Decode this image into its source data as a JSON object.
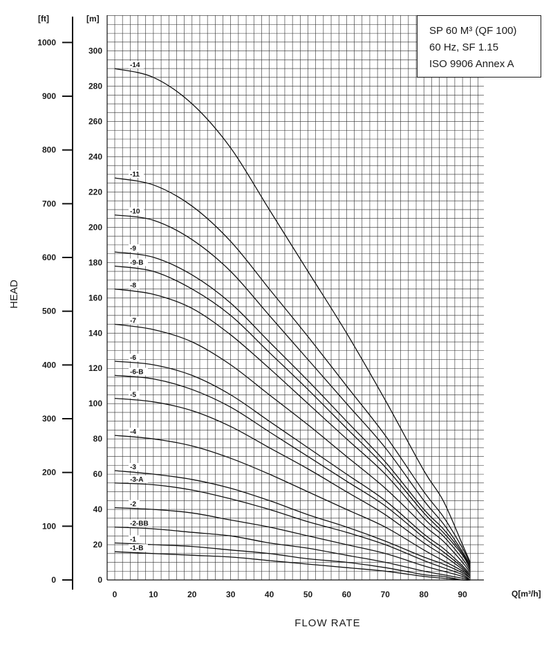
{
  "chart_data": {
    "type": "line",
    "xlabel": "FLOW RATE",
    "ylabel": "HEAD",
    "x_unit": "Q[m³/h]",
    "y_unit_m": "[m]",
    "y_unit_ft": "[ft]",
    "xlim": [
      0,
      94
    ],
    "ylim": [
      0,
      320
    ],
    "x_ticks": [
      "0",
      "10",
      "20",
      "30",
      "40",
      "50",
      "60",
      "70",
      "80",
      "90"
    ],
    "y_ticks_m": [
      "0",
      "20",
      "40",
      "60",
      "80",
      "100",
      "120",
      "140",
      "160",
      "180",
      "200",
      "220",
      "240",
      "260",
      "280",
      "300"
    ],
    "y_ticks_ft": [
      "0",
      "100",
      "200",
      "300",
      "400",
      "500",
      "600",
      "700",
      "800",
      "900",
      "1000"
    ],
    "grid": true,
    "info_box": [
      "SP 60 M³ (QF 100)",
      "60 Hz, SF 1.15",
      "ISO 9906 Annex A"
    ],
    "series": [
      {
        "name": "-14",
        "x": [
          0,
          10,
          20,
          30,
          40,
          50,
          60,
          70,
          80,
          85,
          90,
          92
        ],
        "y": [
          290,
          285,
          270,
          245,
          210,
          175,
          140,
          102,
          62,
          45,
          20,
          10
        ]
      },
      {
        "name": "-11",
        "x": [
          0,
          10,
          20,
          30,
          40,
          50,
          60,
          70,
          80,
          85,
          90,
          92
        ],
        "y": [
          228,
          224,
          212,
          192,
          165,
          138,
          110,
          82,
          50,
          36,
          18,
          9
        ]
      },
      {
        "name": "-10",
        "x": [
          0,
          10,
          20,
          30,
          40,
          50,
          60,
          70,
          80,
          85,
          90,
          92
        ],
        "y": [
          207,
          204,
          193,
          175,
          150,
          125,
          100,
          75,
          45,
          32,
          16,
          8
        ]
      },
      {
        "name": "-9",
        "x": [
          0,
          10,
          20,
          30,
          40,
          50,
          60,
          70,
          80,
          85,
          90,
          92
        ],
        "y": [
          186,
          183,
          173,
          157,
          135,
          113,
          90,
          67,
          40,
          29,
          15,
          7
        ]
      },
      {
        "name": "-9-B",
        "x": [
          0,
          10,
          20,
          30,
          40,
          50,
          60,
          70,
          80,
          85,
          90,
          92
        ],
        "y": [
          178,
          175,
          165,
          150,
          129,
          108,
          86,
          64,
          38,
          27,
          14,
          6
        ]
      },
      {
        "name": "-8",
        "x": [
          0,
          10,
          20,
          30,
          40,
          50,
          60,
          70,
          80,
          85,
          90,
          92
        ],
        "y": [
          165,
          162,
          154,
          139,
          120,
          100,
          80,
          60,
          35,
          25,
          12,
          5
        ]
      },
      {
        "name": "-7",
        "x": [
          0,
          10,
          20,
          30,
          40,
          50,
          60,
          70,
          80,
          85,
          90,
          92
        ],
        "y": [
          145,
          142,
          135,
          122,
          105,
          88,
          70,
          52,
          31,
          22,
          10,
          4
        ]
      },
      {
        "name": "-6",
        "x": [
          0,
          10,
          20,
          30,
          40,
          50,
          60,
          70,
          80,
          85,
          90,
          92
        ],
        "y": [
          124,
          122,
          116,
          105,
          90,
          75,
          60,
          45,
          26,
          18,
          8,
          3
        ]
      },
      {
        "name": "-6-B",
        "x": [
          0,
          10,
          20,
          30,
          40,
          50,
          60,
          70,
          80,
          85,
          90,
          92
        ],
        "y": [
          116,
          114,
          108,
          98,
          84,
          70,
          56,
          42,
          24,
          16,
          7,
          2
        ]
      },
      {
        "name": "-5",
        "x": [
          0,
          10,
          20,
          30,
          40,
          50,
          60,
          70,
          80,
          85,
          90,
          92
        ],
        "y": [
          103,
          101,
          96,
          87,
          75,
          63,
          50,
          37,
          21,
          14,
          6,
          2
        ]
      },
      {
        "name": "-4",
        "x": [
          0,
          10,
          20,
          30,
          40,
          50,
          60,
          70,
          80,
          85,
          90,
          92
        ],
        "y": [
          82,
          80,
          76,
          69,
          60,
          50,
          40,
          30,
          17,
          11,
          5,
          1
        ]
      },
      {
        "name": "-3",
        "x": [
          0,
          10,
          20,
          30,
          40,
          50,
          60,
          70,
          80,
          85,
          90,
          92
        ],
        "y": [
          62,
          60,
          57,
          52,
          45,
          37,
          30,
          22,
          13,
          9,
          4,
          1
        ]
      },
      {
        "name": "-3-A",
        "x": [
          0,
          10,
          20,
          30,
          40,
          50,
          60,
          70,
          80,
          85,
          90,
          92
        ],
        "y": [
          55,
          54,
          51,
          46,
          40,
          33,
          27,
          20,
          11,
          7,
          3,
          0
        ]
      },
      {
        "name": "-2",
        "x": [
          0,
          10,
          20,
          30,
          40,
          50,
          60,
          70,
          80,
          85,
          90,
          92
        ],
        "y": [
          41,
          40,
          38,
          34,
          30,
          25,
          20,
          15,
          8,
          5,
          2,
          0
        ]
      },
      {
        "name": "-2-BB",
        "x": [
          0,
          10,
          20,
          30,
          40,
          50,
          60,
          70,
          80,
          85,
          90,
          92
        ],
        "y": [
          30,
          29,
          27,
          25,
          21,
          18,
          14,
          10,
          5,
          3,
          1,
          0
        ]
      },
      {
        "name": "-1",
        "x": [
          0,
          10,
          20,
          30,
          40,
          50,
          60,
          70,
          80,
          85,
          90,
          92
        ],
        "y": [
          21,
          20,
          19,
          17,
          15,
          12,
          10,
          7,
          3,
          2,
          0,
          0
        ]
      },
      {
        "name": "-1-B",
        "x": [
          0,
          10,
          20,
          30,
          40,
          50,
          60,
          70,
          80,
          85,
          90,
          92
        ],
        "y": [
          16,
          15,
          14,
          13,
          11,
          9,
          7,
          5,
          2,
          1,
          0,
          0
        ]
      }
    ]
  }
}
